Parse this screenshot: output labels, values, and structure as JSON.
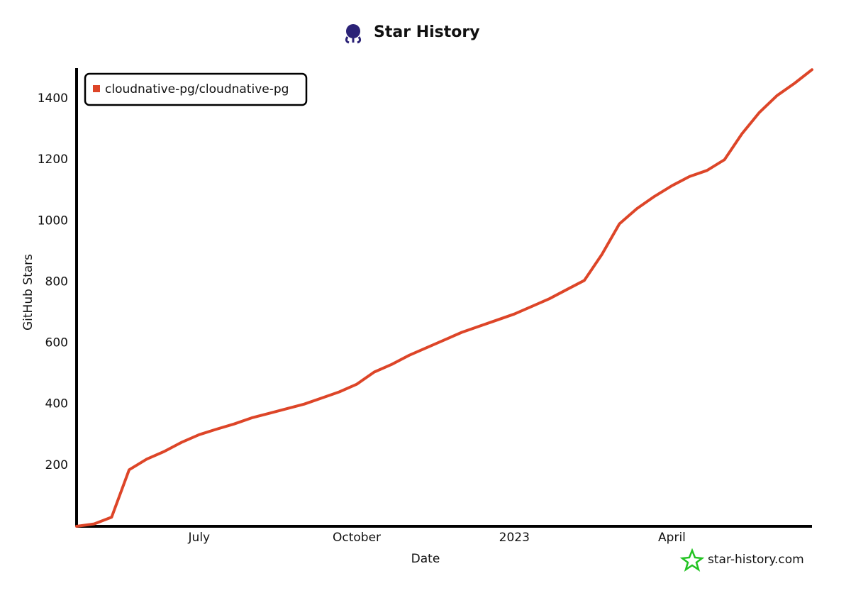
{
  "chart_data": {
    "type": "line",
    "title": "Star History",
    "xlabel": "Date",
    "ylabel": "GitHub Stars",
    "categories": [
      null,
      null,
      null,
      null,
      null,
      null,
      null,
      "July",
      null,
      null,
      null,
      null,
      null,
      null,
      null,
      null,
      "October",
      null,
      null,
      null,
      null,
      null,
      null,
      null,
      null,
      "2023",
      null,
      null,
      null,
      null,
      null,
      null,
      null,
      null,
      "April",
      null,
      null,
      null,
      null,
      null,
      null,
      null,
      null
    ],
    "series": [
      {
        "name": "cloudnative-pg/cloudnative-pg",
        "color": "#dd4528",
        "values": [
          0,
          8,
          30,
          185,
          220,
          245,
          275,
          300,
          318,
          335,
          355,
          370,
          385,
          400,
          420,
          440,
          465,
          505,
          530,
          560,
          585,
          610,
          635,
          655,
          675,
          695,
          720,
          745,
          775,
          805,
          890,
          990,
          1040,
          1080,
          1115,
          1145,
          1165,
          1200,
          1285,
          1355,
          1410,
          1450,
          1495
        ]
      }
    ],
    "ylim": [
      0,
      1500
    ],
    "yticks": [
      200,
      400,
      600,
      800,
      1000,
      1200,
      1400
    ],
    "grid": false,
    "legend": "upper left",
    "watermark": "star-history.com"
  }
}
